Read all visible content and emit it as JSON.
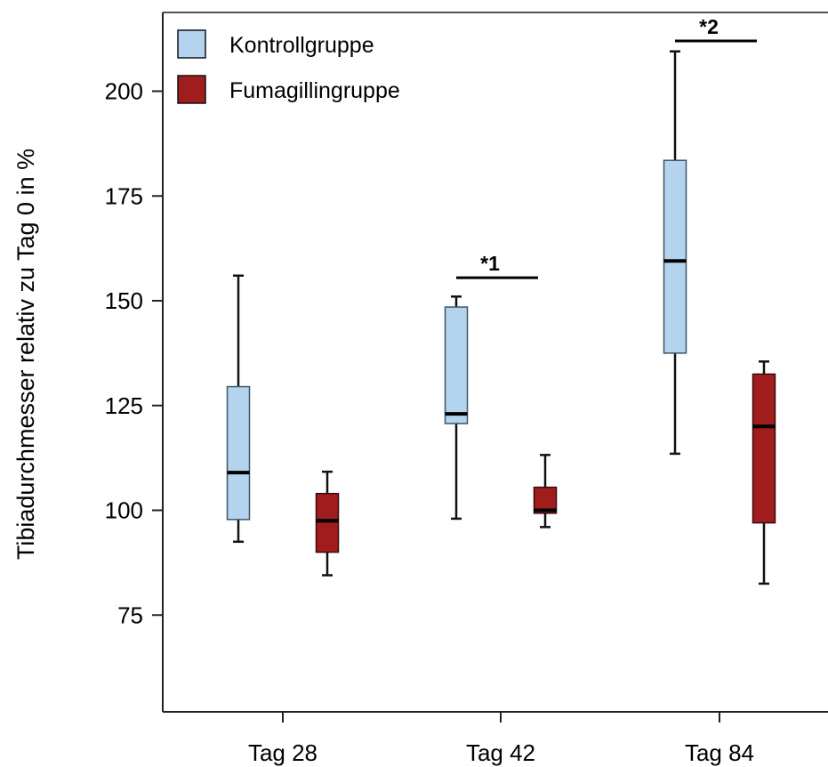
{
  "chart_data": {
    "type": "boxplot",
    "ylabel": "Tibiadurchmesser relativ zu Tag 0 in %",
    "xlabel": "",
    "ylim": [
      52,
      215
    ],
    "yticks": [
      75,
      100,
      125,
      150,
      175,
      200
    ],
    "categories": [
      "Tag 28",
      "Tag 42",
      "Tag 84"
    ],
    "legend_position": "top-left",
    "series": [
      {
        "name": "Kontrollgruppe",
        "color": "#b3d3ee",
        "boxes": [
          {
            "min": 92.5,
            "q1": 97.8,
            "median": 109,
            "q3": 129.5,
            "max": 156
          },
          {
            "min": 98,
            "q1": 120.7,
            "median": 123,
            "q3": 148.5,
            "max": 151
          },
          {
            "min": 113.5,
            "q1": 137.5,
            "median": 159.5,
            "q3": 183.5,
            "max": 209.5
          }
        ]
      },
      {
        "name": "Fumagillingruppe",
        "color": "#a01c1d",
        "boxes": [
          {
            "min": 84.5,
            "q1": 90,
            "median": 97.5,
            "q3": 104,
            "max": 109.2
          },
          {
            "min": 96,
            "q1": 99.3,
            "median": 100,
            "q3": 105.5,
            "max": 113.2
          },
          {
            "min": 82.5,
            "q1": 97,
            "median": 120,
            "q3": 132.5,
            "max": 135.5
          }
        ]
      }
    ],
    "annotations": [
      {
        "text": "*1",
        "category": "Tag 42",
        "y": 155.5
      },
      {
        "text": "*2",
        "category": "Tag 84",
        "y": 212
      }
    ]
  },
  "icons": {
    "legend_control": "light-blue-square",
    "legend_fumagillin": "dark-red-square"
  }
}
